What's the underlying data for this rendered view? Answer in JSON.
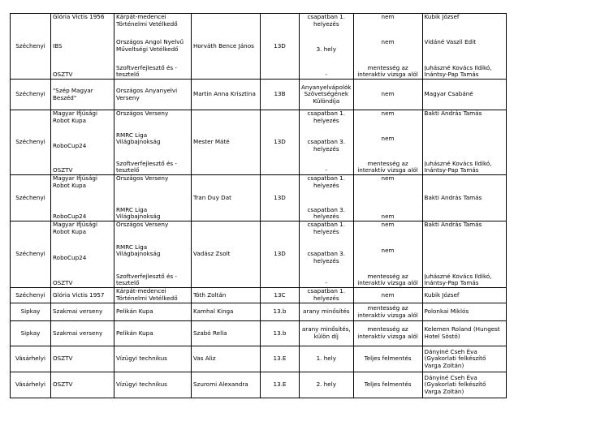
{
  "table": {
    "rows": [
      [
        [
          "Széchenyi"
        ],
        [
          "Glória Victis 1956",
          "IBS",
          "OSZTV"
        ],
        [
          "Kárpát-medencei Történelmi Vetélkedő",
          "Országos Angol Nyelvű Műveltségi Vetélkedő",
          "Szoftverfejlesztő és -tesztelő"
        ],
        [
          "Horváth Bence János"
        ],
        [
          "13D"
        ],
        [
          "csapatban 1. helyezés",
          "3. hely",
          "-"
        ],
        [
          "nem",
          "nem",
          "mentesség az interaktív vizsga alól"
        ],
        [
          "Kubik József",
          "Vidáné Vaszil Edit",
          "Juhászné Kovács Ildikó, Inántsy-Pap Tamás"
        ]
      ],
      [
        [
          "Széchenyi"
        ],
        [
          "\"Szép Magyar Beszéd\""
        ],
        [
          "Országos Anyanyelvi Verseny"
        ],
        [
          "Martin Anna Krisztina"
        ],
        [
          "13B"
        ],
        [
          "Anyanyelvápolók Szövetségének Különdíja"
        ],
        [
          "nem"
        ],
        [
          "Magyar Csabáné"
        ]
      ],
      [
        [
          "Széchenyi"
        ],
        [
          "Magyar Ifjúsági Robot Kupa",
          "RoboCup24",
          "OSZTV"
        ],
        [
          "Országos Verseny",
          "RMRC Liga Világbajnokság",
          "Szoftverfejlesztő és -tesztelő"
        ],
        [
          "Mester Máté"
        ],
        [
          "13D"
        ],
        [
          "csapatban 1. helyezés",
          "csapatban 3. helyezés",
          "-"
        ],
        [
          "nem",
          "nem",
          "mentesség az interaktív vizsga alól"
        ],
        [
          "Bakti András Tamás",
          "Juhászné Kovács Ildikó, Inántsy-Pap Tamás"
        ]
      ],
      [
        [
          "Széchenyi"
        ],
        [
          "Magyar Ifjúsági Robot Kupa",
          "RoboCup24"
        ],
        [
          "Országos Verseny",
          "RMRC Liga Világbajnokság"
        ],
        [
          "Tran Duy Dat"
        ],
        [
          "13D"
        ],
        [
          "csapatban 1. helyezés",
          "csapatban 3. helyezés"
        ],
        [
          "nem",
          "nem"
        ],
        [
          "Bakti András Tamás"
        ]
      ],
      [
        [
          "Széchenyi"
        ],
        [
          "Magyar Ifjúsági Robot Kupa",
          "RoboCup24",
          "OSZTV"
        ],
        [
          "Országos Verseny",
          "RMRC Liga Világbajnokság",
          "Szoftverfejlesztő és -tesztelő"
        ],
        [
          "Vadász Zsolt"
        ],
        [
          "13D"
        ],
        [
          "csapatban 1. helyezés",
          "csapatban 3. helyezés",
          "-"
        ],
        [
          "nem",
          "nem",
          "mentesség az interaktív vizsga alól"
        ],
        [
          "Bakti András Tamás",
          "Juhászné Kovács Ildikó, Inántsy-Pap Tamás"
        ]
      ],
      [
        [
          "Széchenyi"
        ],
        [
          "Glória Victis 1957"
        ],
        [
          "Kárpát-medencei Történelmi Vetélkedő"
        ],
        [
          "Tóth Zoltán"
        ],
        [
          "13C"
        ],
        [
          "csapatban 1. helyezés"
        ],
        [
          "nem"
        ],
        [
          "Kubik József"
        ]
      ],
      [
        [
          "Sipkay"
        ],
        [
          "Szakmai verseny"
        ],
        [
          "Pelikán Kupa"
        ],
        [
          "Kamhal Kinga"
        ],
        [
          "13.b"
        ],
        [
          "arany minősítés"
        ],
        [
          "mentesség az interaktív vizsga alól"
        ],
        [
          "Polonkai Miklós"
        ]
      ],
      [
        [
          "Sipkay"
        ],
        [
          "Szakmai verseny"
        ],
        [
          "Pelikán Kupa"
        ],
        [
          "Szabó Rella"
        ],
        [
          "13.b"
        ],
        [
          "arany minősítés, külön díj"
        ],
        [
          "mentesség az interaktív vizsga alól"
        ],
        [
          "Kelemen Roland (Hungest Hotel Sóstó)"
        ]
      ],
      [
        [
          "Vásárhelyi"
        ],
        [
          "OSZTV"
        ],
        [
          "Vízügyi technikus"
        ],
        [
          "Vas Aliz"
        ],
        [
          "13.E"
        ],
        [
          "1. hely"
        ],
        [
          "Teljes felmentés"
        ],
        [
          "Dányiné Cseh Éva (Gyakorlati felkészítő Varga Zoltán)"
        ]
      ],
      [
        [
          "Vásárhelyi"
        ],
        [
          "OSZTV"
        ],
        [
          "Vízügyi technikus"
        ],
        [
          "Szuromi Alexandra"
        ],
        [
          "13.E"
        ],
        [
          "2. hely"
        ],
        [
          "Teljes felmentés"
        ],
        [
          "Dányiné Cseh Éva (Gyakorlati felkészítő Varga Zoltán)"
        ]
      ]
    ]
  }
}
